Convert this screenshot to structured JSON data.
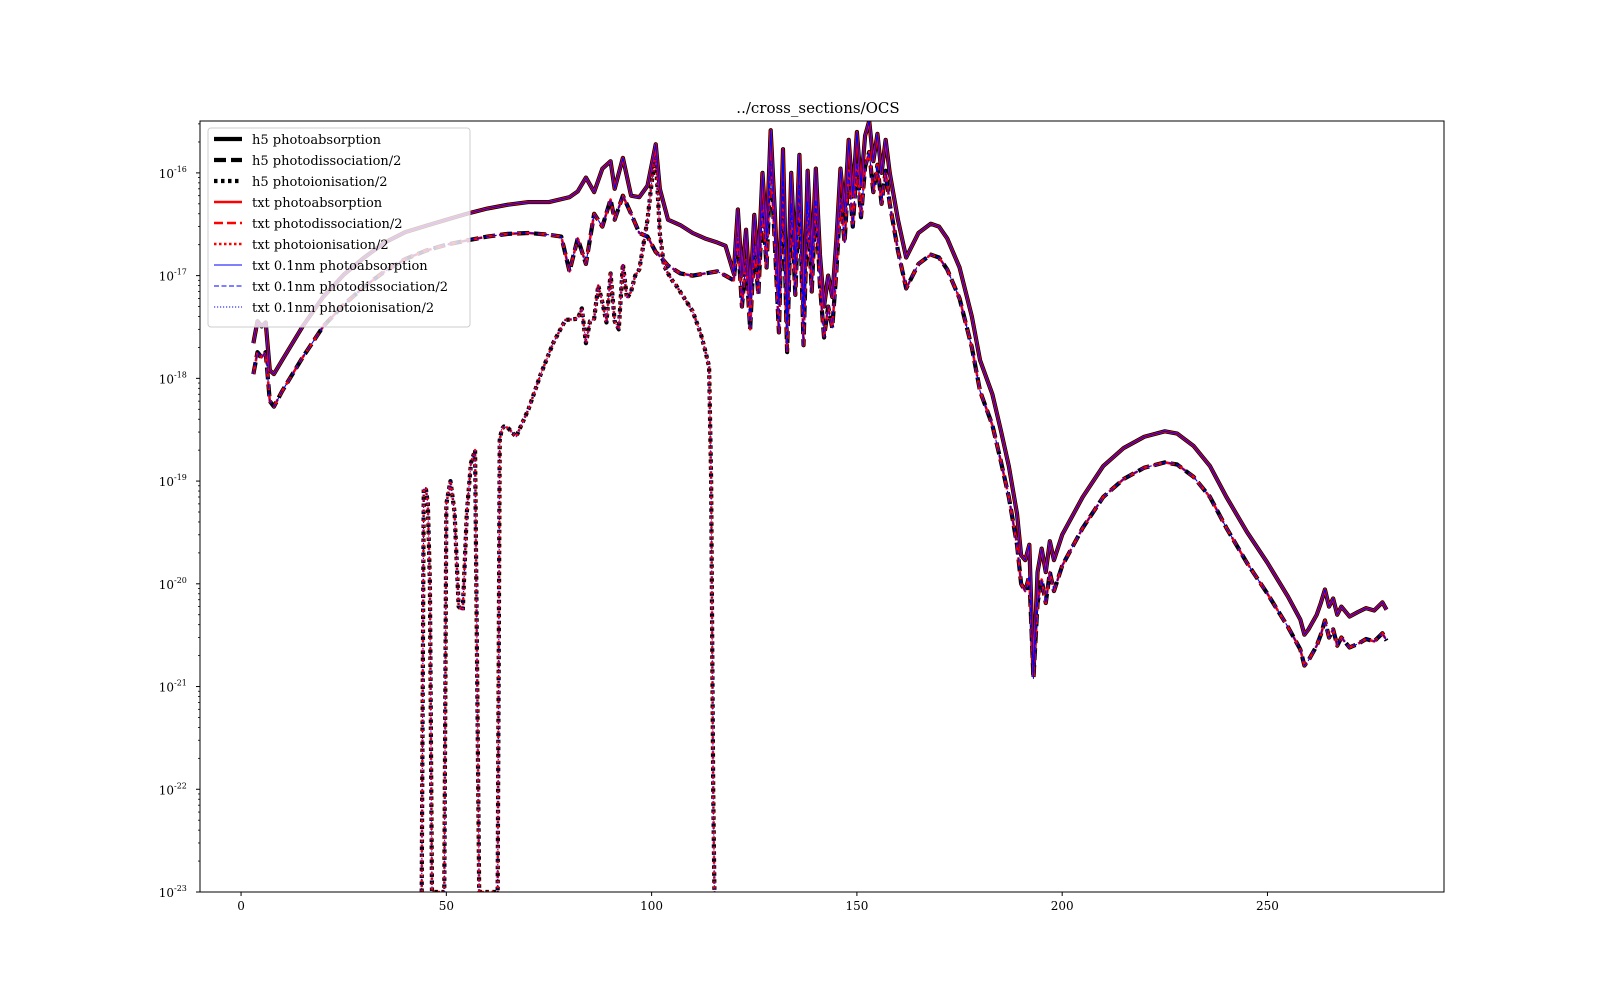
{
  "chart_data": {
    "type": "line",
    "title": "../cross_sections/OCS",
    "xlabel": "",
    "ylabel": "",
    "xlim": [
      -10,
      293
    ],
    "ylim": [
      1e-23,
      3.2e-16
    ],
    "yscale": "log",
    "grid": false,
    "legend_position": "top-left",
    "x_ticks": [
      {
        "value": 0,
        "label": "0"
      },
      {
        "value": 50,
        "label": "50"
      },
      {
        "value": 100,
        "label": "100"
      },
      {
        "value": 150,
        "label": "150"
      },
      {
        "value": 200,
        "label": "200"
      },
      {
        "value": 250,
        "label": "250"
      }
    ],
    "y_ticks": [
      {
        "value": 1e-23,
        "base": "10",
        "exp": "-23"
      },
      {
        "value": 1e-22,
        "base": "10",
        "exp": "-22"
      },
      {
        "value": 1e-21,
        "base": "10",
        "exp": "-21"
      },
      {
        "value": 1e-20,
        "base": "10",
        "exp": "-20"
      },
      {
        "value": 1e-19,
        "base": "10",
        "exp": "-19"
      },
      {
        "value": 1e-18,
        "base": "10",
        "exp": "-18"
      },
      {
        "value": 1e-17,
        "base": "10",
        "exp": "-17"
      },
      {
        "value": 1e-16,
        "base": "10",
        "exp": "-16"
      }
    ],
    "curves": {
      "photoabsorption": {
        "x": [
          3,
          4,
          5,
          6,
          7,
          8,
          10,
          15,
          20,
          25,
          30,
          35,
          40,
          45,
          50,
          55,
          60,
          65,
          70,
          75,
          80,
          82,
          84,
          86,
          88,
          90,
          91,
          93,
          95,
          97,
          99,
          101,
          102,
          104,
          107,
          110,
          113,
          116,
          118,
          120,
          121,
          122,
          123,
          124,
          125,
          126,
          127,
          128,
          129,
          130,
          131,
          132,
          133,
          134,
          135,
          136,
          137,
          138,
          139,
          140,
          141,
          142,
          143,
          144,
          145,
          146,
          147,
          148,
          149,
          150,
          151,
          152,
          153,
          154,
          155,
          156,
          157,
          158,
          160,
          162,
          165,
          168,
          170,
          172,
          175,
          178,
          180,
          183,
          185,
          187,
          189,
          190,
          191,
          192,
          193,
          194,
          195,
          196,
          197,
          198,
          200,
          205,
          210,
          215,
          220,
          225,
          228,
          232,
          236,
          240,
          245,
          250,
          255,
          258,
          259,
          260,
          262,
          263,
          264,
          265,
          266,
          267,
          268,
          270,
          272,
          274,
          276,
          278,
          279
        ],
        "y": [
          2.2e-18,
          3.6e-18,
          3.2e-18,
          3.5e-18,
          1.2e-18,
          1.1e-18,
          1.5e-18,
          3.2e-18,
          6.2e-18,
          1.02e-17,
          1.5e-17,
          2.1e-17,
          2.65e-17,
          3.05e-17,
          3.5e-17,
          4e-17,
          4.5e-17,
          4.9e-17,
          5.2e-17,
          5.2e-17,
          5.8e-17,
          6.6e-17,
          9e-17,
          6.5e-17,
          1.1e-16,
          1.3e-16,
          7e-17,
          1.4e-16,
          6e-17,
          5.8e-17,
          7.5e-17,
          1.9e-16,
          7e-17,
          3.5e-17,
          3.1e-17,
          2.6e-17,
          2.3e-17,
          2.1e-17,
          1.95e-17,
          1.05e-17,
          4.4e-17,
          1e-17,
          2.8e-17,
          6e-18,
          3.9e-17,
          1.3e-17,
          1e-16,
          2.4e-17,
          2.6e-16,
          4.2e-17,
          5.5e-18,
          1.7e-16,
          3.5e-18,
          1e-16,
          1.3e-17,
          1.5e-16,
          4.2e-18,
          1.05e-16,
          1.4e-17,
          1.1e-16,
          1.6e-17,
          5e-18,
          1e-17,
          6.2e-18,
          2.2e-17,
          1.1e-16,
          4.2e-17,
          2.1e-16,
          6e-17,
          2.5e-16,
          7.5e-17,
          2.3e-16,
          3.2e-16,
          1.3e-16,
          2.4e-16,
          1e-16,
          2.1e-16,
          1e-16,
          3.5e-17,
          1.5e-17,
          2.6e-17,
          3.2e-17,
          3e-17,
          2.3e-17,
          1.2e-17,
          4e-18,
          1.5e-18,
          7e-19,
          3.2e-19,
          1.4e-19,
          4.8e-20,
          1.9e-20,
          1.7e-20,
          2.4e-20,
          1.3e-21,
          1.3e-20,
          2.2e-20,
          1.3e-20,
          2.6e-20,
          1.7e-20,
          3e-20,
          7e-20,
          1.4e-19,
          2.1e-19,
          2.7e-19,
          3.05e-19,
          2.9e-19,
          2.2e-19,
          1.4e-19,
          7e-20,
          3.2e-20,
          1.6e-20,
          7.5e-21,
          4.5e-21,
          3.2e-21,
          3.6e-21,
          5e-21,
          6.5e-21,
          8.8e-21,
          6e-21,
          7.2e-21,
          5e-21,
          6e-21,
          4.8e-21,
          5.3e-21,
          5.8e-21,
          5.5e-21,
          6.6e-21,
          5.6e-21
        ]
      },
      "photodissociation": {
        "x": [
          3,
          4,
          5,
          6,
          7,
          8,
          10,
          15,
          20,
          25,
          30,
          35,
          40,
          45,
          50,
          55,
          60,
          65,
          70,
          75,
          78,
          80,
          82,
          84,
          86,
          88,
          90,
          91,
          93,
          95,
          97,
          99,
          101,
          102,
          104,
          107,
          110,
          113,
          116,
          118,
          120,
          121,
          122,
          123,
          124,
          125,
          126,
          127,
          128,
          129,
          130,
          131,
          132,
          133,
          134,
          135,
          136,
          137,
          138,
          139,
          140,
          141,
          142,
          143,
          144,
          145,
          146,
          147,
          148,
          149,
          150,
          151,
          152,
          153,
          154,
          155,
          156,
          157,
          158,
          160,
          162,
          165,
          168,
          170,
          172,
          175,
          178,
          180,
          183,
          185,
          187,
          189,
          190,
          191,
          192,
          193,
          194,
          195,
          196,
          197,
          198,
          200,
          205,
          210,
          215,
          220,
          225,
          228,
          232,
          236,
          240,
          245,
          250,
          255,
          258,
          259,
          260,
          262,
          263,
          264,
          265,
          266,
          267,
          268,
          270,
          272,
          274,
          276,
          278,
          279
        ],
        "y": [
          1.1e-18,
          1.8e-18,
          1.6e-18,
          1.8e-18,
          6e-19,
          5.3e-19,
          7.5e-19,
          1.6e-18,
          3.2e-18,
          5.2e-18,
          7.8e-18,
          1.1e-17,
          1.45e-17,
          1.75e-17,
          2e-17,
          2.2e-17,
          2.4e-17,
          2.55e-17,
          2.6e-17,
          2.5e-17,
          2.4e-17,
          1.1e-17,
          2.3e-17,
          1.3e-17,
          4e-17,
          3e-17,
          5.5e-17,
          3.5e-17,
          6e-17,
          4e-17,
          2.6e-17,
          2.4e-17,
          1.7e-17,
          1.55e-17,
          1.25e-17,
          1.05e-17,
          1e-17,
          1.05e-17,
          1.1e-17,
          1e-17,
          9e-18,
          2.3e-17,
          5e-18,
          1.4e-17,
          3e-18,
          2e-17,
          6.5e-18,
          5e-17,
          1.2e-17,
          1.3e-16,
          2.1e-17,
          2.8e-18,
          8.5e-17,
          1.8e-18,
          5e-17,
          6.5e-18,
          7.5e-17,
          2.1e-18,
          5.2e-17,
          7e-18,
          5.5e-17,
          8e-18,
          2.5e-18,
          5e-18,
          3.1e-18,
          1.1e-17,
          5.5e-17,
          2.1e-17,
          1.05e-16,
          3e-17,
          1.25e-16,
          3.7e-17,
          1.15e-16,
          1.6e-16,
          6.5e-17,
          1.2e-16,
          5e-17,
          1.05e-16,
          5e-17,
          1.75e-17,
          7.5e-18,
          1.3e-17,
          1.6e-17,
          1.5e-17,
          1.15e-17,
          6e-18,
          2e-18,
          7.5e-19,
          3.5e-19,
          1.6e-19,
          7e-20,
          2.4e-20,
          1e-20,
          8.5e-21,
          1.2e-20,
          1.2e-21,
          6.5e-21,
          1.1e-20,
          6.5e-21,
          1.3e-20,
          8.5e-21,
          1.5e-20,
          3.5e-20,
          7e-20,
          1.05e-19,
          1.35e-19,
          1.52e-19,
          1.45e-19,
          1.1e-19,
          7e-20,
          3.5e-20,
          1.6e-20,
          8e-21,
          3.8e-21,
          2.3e-21,
          1.6e-21,
          1.8e-21,
          2.5e-21,
          3.2e-21,
          4.4e-21,
          3e-21,
          3.6e-21,
          2.5e-21,
          3e-21,
          2.4e-21,
          2.6e-21,
          2.9e-21,
          2.75e-21,
          3.3e-21,
          2.8e-21
        ]
      },
      "photoionisation": {
        "x": [
          44,
          44.5,
          45,
          45.5,
          46,
          46.5,
          47,
          48,
          49,
          49.5,
          50,
          51,
          52,
          53,
          54,
          55,
          56,
          57,
          58,
          59,
          60,
          61,
          62,
          62.5,
          63,
          63.5,
          64,
          65,
          67,
          70,
          73,
          76,
          79,
          82,
          83,
          84,
          85,
          86,
          87,
          88,
          89,
          90,
          91,
          92,
          93,
          94,
          95,
          96,
          97,
          98,
          99,
          100,
          101,
          102,
          103,
          104,
          105,
          106,
          108,
          110,
          112,
          113,
          114,
          114.5,
          115,
          115.3
        ],
        "y": [
          1e-23,
          8.5e-20,
          8.5e-20,
          6e-20,
          1e-20,
          1e-23,
          1e-23,
          1e-23,
          1e-23,
          1e-23,
          6e-20,
          1e-19,
          5e-20,
          6e-21,
          5.5e-21,
          5e-20,
          1.5e-19,
          2e-19,
          1e-23,
          1e-23,
          1e-23,
          1e-23,
          1e-23,
          1e-23,
          2.5e-19,
          3.2e-19,
          3.4e-19,
          3.3e-19,
          2.7e-19,
          5e-19,
          1.1e-18,
          2.2e-18,
          3.7e-18,
          3.8e-18,
          4.8e-18,
          2.2e-18,
          3.6e-18,
          3.8e-18,
          8e-18,
          5.5e-18,
          3.5e-18,
          1.05e-17,
          3.6e-18,
          3e-18,
          1.3e-17,
          6e-18,
          7e-18,
          1e-17,
          1.15e-17,
          2e-17,
          3.5e-17,
          8e-17,
          1.5e-16,
          2.6e-17,
          1.25e-17,
          1.05e-17,
          9e-18,
          8e-18,
          6e-18,
          4.5e-18,
          2.7e-18,
          1.9e-18,
          1.3e-18,
          1e-19,
          1e-22,
          1e-23
        ]
      }
    },
    "series": [
      {
        "name": "h5 photoabsorption",
        "curve": "photoabsorption",
        "color": "#000000",
        "width": 4.2,
        "dash": ""
      },
      {
        "name": "h5 photodissociation/2",
        "curve": "photodissociation",
        "color": "#000000",
        "width": 4.2,
        "dash": "12,5"
      },
      {
        "name": "h5 photoionisation/2",
        "curve": "photoionisation",
        "color": "#000000",
        "width": 4.2,
        "dash": "3.5,3.5"
      },
      {
        "name": "txt photoabsorption",
        "curve": "photoabsorption",
        "color": "#ff0000",
        "width": 2.6,
        "dash": ""
      },
      {
        "name": "txt photodissociation/2",
        "curve": "photodissociation",
        "color": "#ff0000",
        "width": 2.6,
        "dash": "9,4"
      },
      {
        "name": "txt photoionisation/2",
        "curve": "photoionisation",
        "color": "#ff0000",
        "width": 2.6,
        "dash": "2.5,2.5"
      },
      {
        "name": "txt 0.1nm photoabsorption",
        "curve": "photoabsorption",
        "color": "#0000ff",
        "width": 1.1,
        "dash": ""
      },
      {
        "name": "txt 0.1nm photodissociation/2",
        "curve": "photodissociation",
        "color": "#0000ff",
        "width": 1.1,
        "dash": "5,2.5"
      },
      {
        "name": "txt 0.1nm photoionisation/2",
        "curve": "photoionisation",
        "color": "#0000ff",
        "width": 1.1,
        "dash": "1.2,1.8"
      }
    ]
  }
}
